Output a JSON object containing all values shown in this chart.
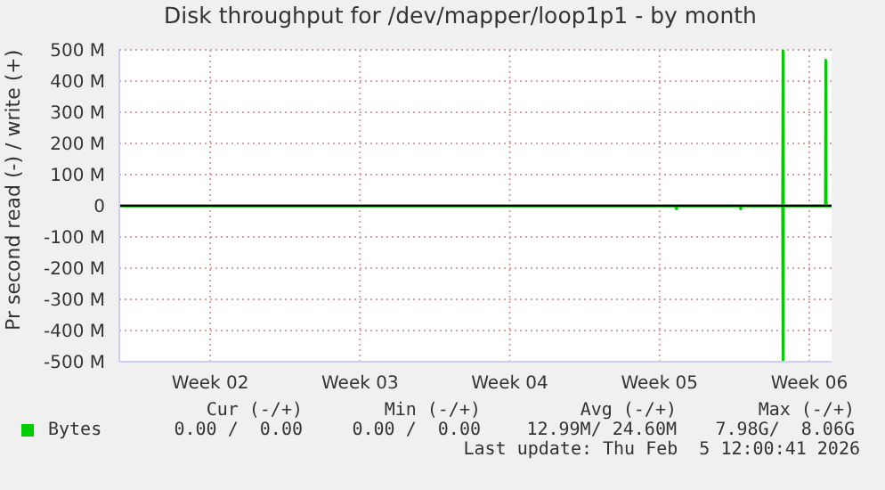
{
  "chart_data": {
    "type": "line",
    "title": "Disk throughput for /dev/mapper/loop1p1 - by month",
    "ylabel": "Pr second read (-) / write (+)",
    "xlim": [
      "2026-01-04T06:00",
      "2026-02-06T13:00"
    ],
    "xticks": [
      {
        "value": "2026-01-08T12:00",
        "label": "Week 02"
      },
      {
        "value": "2026-01-15T12:00",
        "label": "Week 03"
      },
      {
        "value": "2026-01-22T12:00",
        "label": "Week 04"
      },
      {
        "value": "2026-01-29T12:00",
        "label": "Week 05"
      },
      {
        "value": "2026-02-05T12:00",
        "label": "Week 06"
      }
    ],
    "ylim": [
      -500,
      500
    ],
    "yticks": [
      {
        "value": -500,
        "label": "-500 M"
      },
      {
        "value": -400,
        "label": "-400 M"
      },
      {
        "value": -300,
        "label": "-300 M"
      },
      {
        "value": -200,
        "label": "-200 M"
      },
      {
        "value": -100,
        "label": "-100 M"
      },
      0,
      {
        "value": 100,
        "label": "100 M"
      },
      {
        "value": 200,
        "label": "200 M"
      },
      {
        "value": 300,
        "label": "300 M"
      },
      {
        "value": 400,
        "label": "400 M"
      },
      {
        "value": 500,
        "label": "500 M"
      }
    ],
    "series": [
      {
        "color": "#00cc00",
        "x": [
          "2026-01-04T06:00",
          "2026-01-30T06:00",
          "2026-01-30T07:00",
          "2026-01-30T08:00",
          "2026-02-02T06:00",
          "2026-02-02T07:00",
          "2026-02-02T08:00",
          "2026-02-04T06:00",
          "2026-02-04T06:30",
          "2026-02-04T07:00",
          "2026-02-06T13:00"
        ],
        "values": [
          0,
          0,
          -10,
          0,
          0,
          -10,
          0,
          0,
          -500,
          0,
          0
        ]
      },
      {
        "name": "Bytes",
        "color": "#00cc00",
        "x": [
          "2026-01-04T06:00",
          "2026-02-04T06:00",
          "2026-02-04T06:30",
          "2026-02-04T07:00",
          "2026-02-06T06:00",
          "2026-02-06T06:30",
          "2026-02-06T07:00",
          "2026-02-06T13:00"
        ],
        "values": [
          0,
          0,
          500,
          0,
          0,
          467,
          0,
          0
        ]
      }
    ],
    "ref_lines": [
      {
        "axis": "y",
        "value": 0,
        "color": "#000000"
      }
    ],
    "grid": true,
    "legend": "bottom",
    "marker": "none",
    "line_style": "solid",
    "annotations": [
      "Cur (-/+)",
      "Min (-/+)",
      "Avg (-/+)",
      "Max (-/+)",
      "0.00 /  0.00",
      "0.00 /  0.00",
      "12.99M/ 24.60M",
      "7.98G/  8.06G",
      "Last update: Thu Feb  5 12:00:41 2026"
    ]
  }
}
